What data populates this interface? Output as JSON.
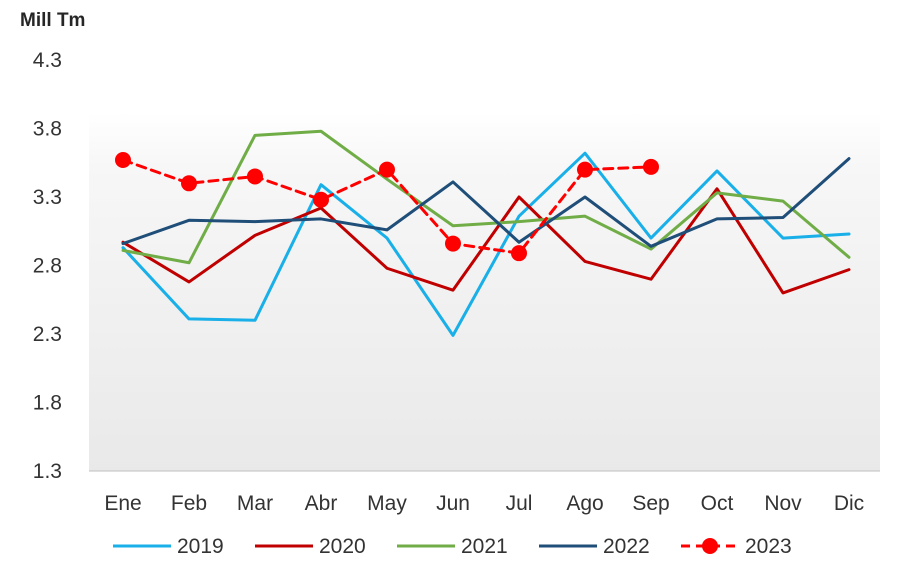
{
  "chart_data": {
    "type": "line",
    "ylabel": "Mill Tm",
    "categories": [
      "Ene",
      "Feb",
      "Mar",
      "Abr",
      "May",
      "Jun",
      "Jul",
      "Ago",
      "Sep",
      "Oct",
      "Nov",
      "Dic"
    ],
    "yticks": [
      "4.3",
      "3.8",
      "3.3",
      "2.8",
      "2.3",
      "1.8",
      "1.3"
    ],
    "ylim": [
      1.3,
      4.3
    ],
    "grid": false,
    "legend_position": "bottom",
    "background": "gradient-light-gray",
    "series": [
      {
        "name": "2019",
        "color": "#19AFE8",
        "dash": false,
        "markers": false,
        "values": [
          2.93,
          2.41,
          2.4,
          3.39,
          3.0,
          2.29,
          3.16,
          3.62,
          3.0,
          3.49,
          3.0,
          3.03
        ]
      },
      {
        "name": "2020",
        "color": "#C00000",
        "dash": false,
        "markers": false,
        "values": [
          2.97,
          2.68,
          3.02,
          3.22,
          2.78,
          2.62,
          3.3,
          2.83,
          2.7,
          3.36,
          2.6,
          2.77
        ]
      },
      {
        "name": "2021",
        "color": "#70AD47",
        "dash": false,
        "markers": false,
        "values": [
          2.91,
          2.82,
          3.75,
          3.78,
          3.43,
          3.09,
          3.12,
          3.16,
          2.92,
          3.33,
          3.27,
          2.86
        ]
      },
      {
        "name": "2022",
        "color": "#1F4E79",
        "dash": false,
        "markers": false,
        "values": [
          2.96,
          3.13,
          3.12,
          3.14,
          3.06,
          3.41,
          2.97,
          3.3,
          2.94,
          3.14,
          3.15,
          3.58
        ]
      },
      {
        "name": "2023",
        "color": "#FF0000",
        "dash": true,
        "markers": true,
        "values": [
          3.57,
          3.4,
          3.45,
          3.28,
          3.5,
          2.96,
          2.89,
          3.5,
          3.52,
          null,
          null,
          null
        ]
      }
    ]
  }
}
